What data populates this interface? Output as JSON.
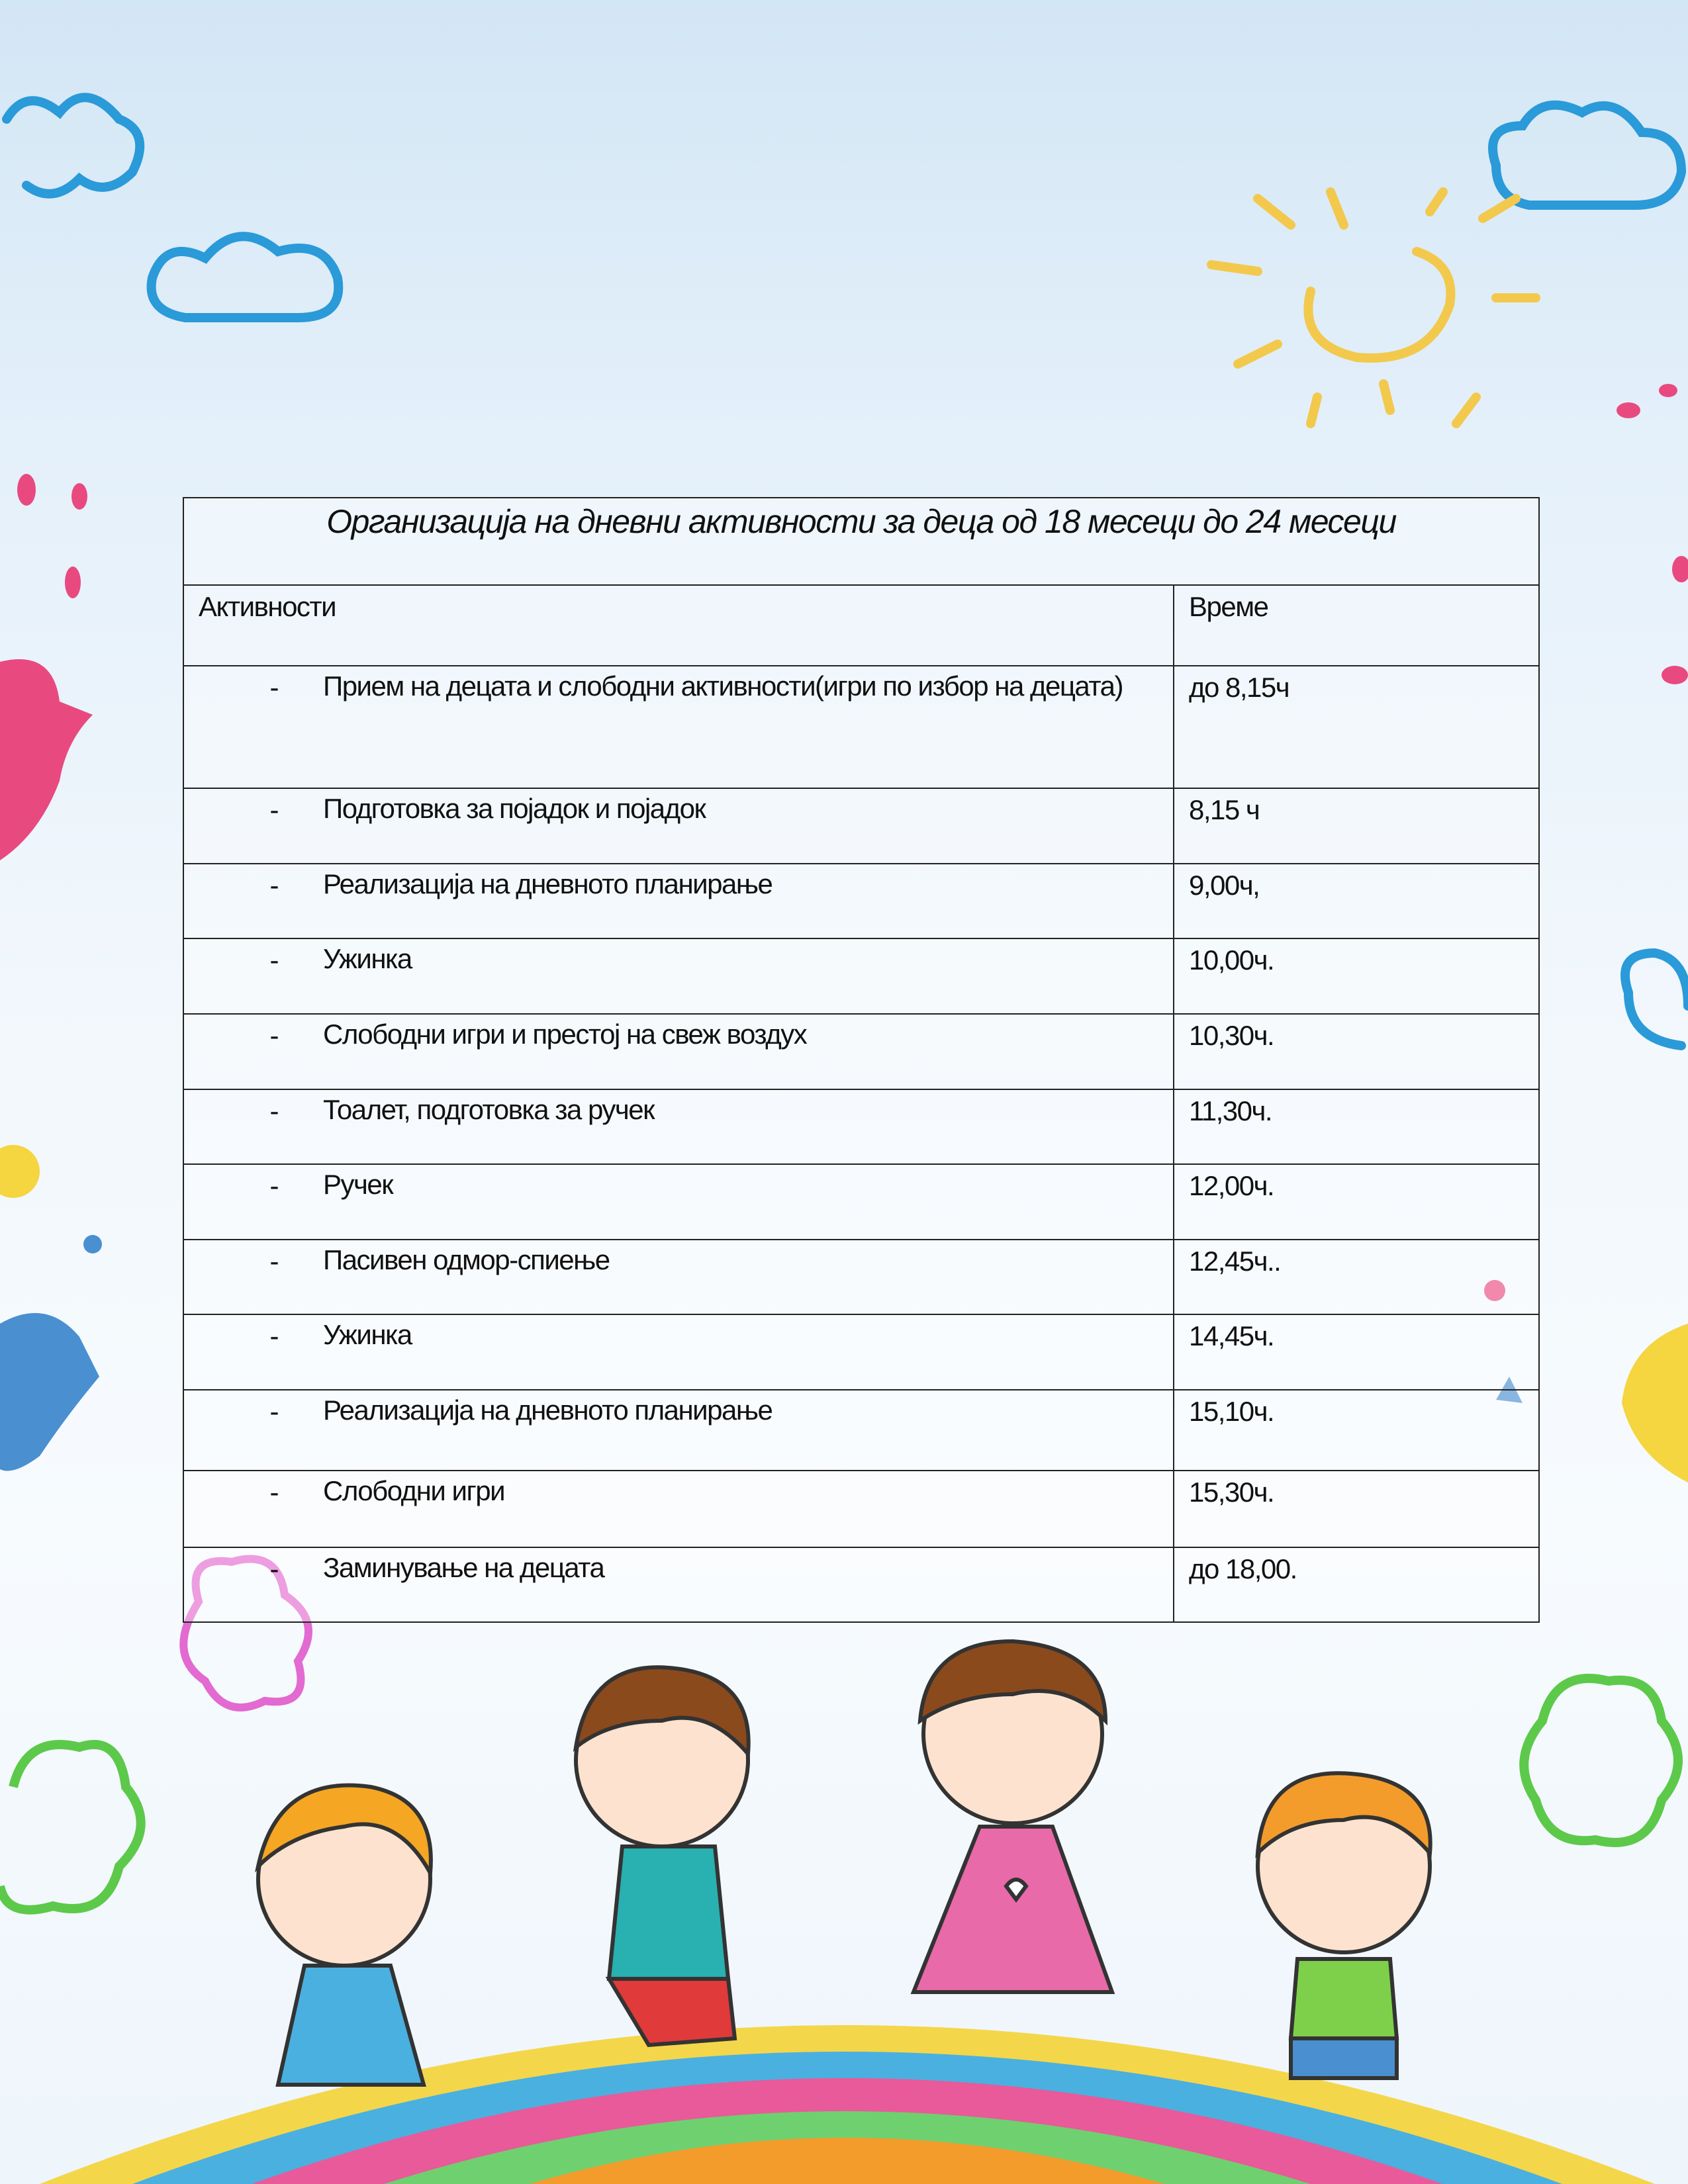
{
  "table": {
    "title": "Организација на дневни активности за деца од 18 месеци до 24 месеци",
    "headers": {
      "activity": "Активности",
      "time": "Време"
    },
    "bullet": "-",
    "rows": [
      {
        "activity": "Прием на децата и слободни активности(игри по избор на децата)",
        "time": "до 8,15ч"
      },
      {
        "activity": "Подготовка за појадок и појадок",
        "time": "8,15 ч"
      },
      {
        "activity": "Реализација на дневното планирање",
        "time": "9,00ч,"
      },
      {
        "activity": "Ужинка",
        "time": "10,00ч."
      },
      {
        "activity": "Слободни игри и престој на свеж воздух",
        "time": "10,30ч."
      },
      {
        "activity": "Тоалет, подготовка за ручек",
        "time": "11,30ч."
      },
      {
        "activity": "Ручек",
        "time": "12,00ч."
      },
      {
        "activity": "Пасивен одмор-спиење",
        "time": "12,45ч.."
      },
      {
        "activity": "Ужинка",
        "time": "14,45ч."
      },
      {
        "activity": "Реализација на дневното планирање",
        "time": "15,10ч."
      },
      {
        "activity": "Слободни игри",
        "time": "15,30ч."
      },
      {
        "activity": "Заминување на децата",
        "time": "до 18,00."
      }
    ]
  },
  "colors": {
    "cloud": "#2a9ad8",
    "sun": "#f2c94c",
    "pink": "#e84a7f",
    "green": "#5cc94a",
    "orange": "#f39c2c"
  }
}
